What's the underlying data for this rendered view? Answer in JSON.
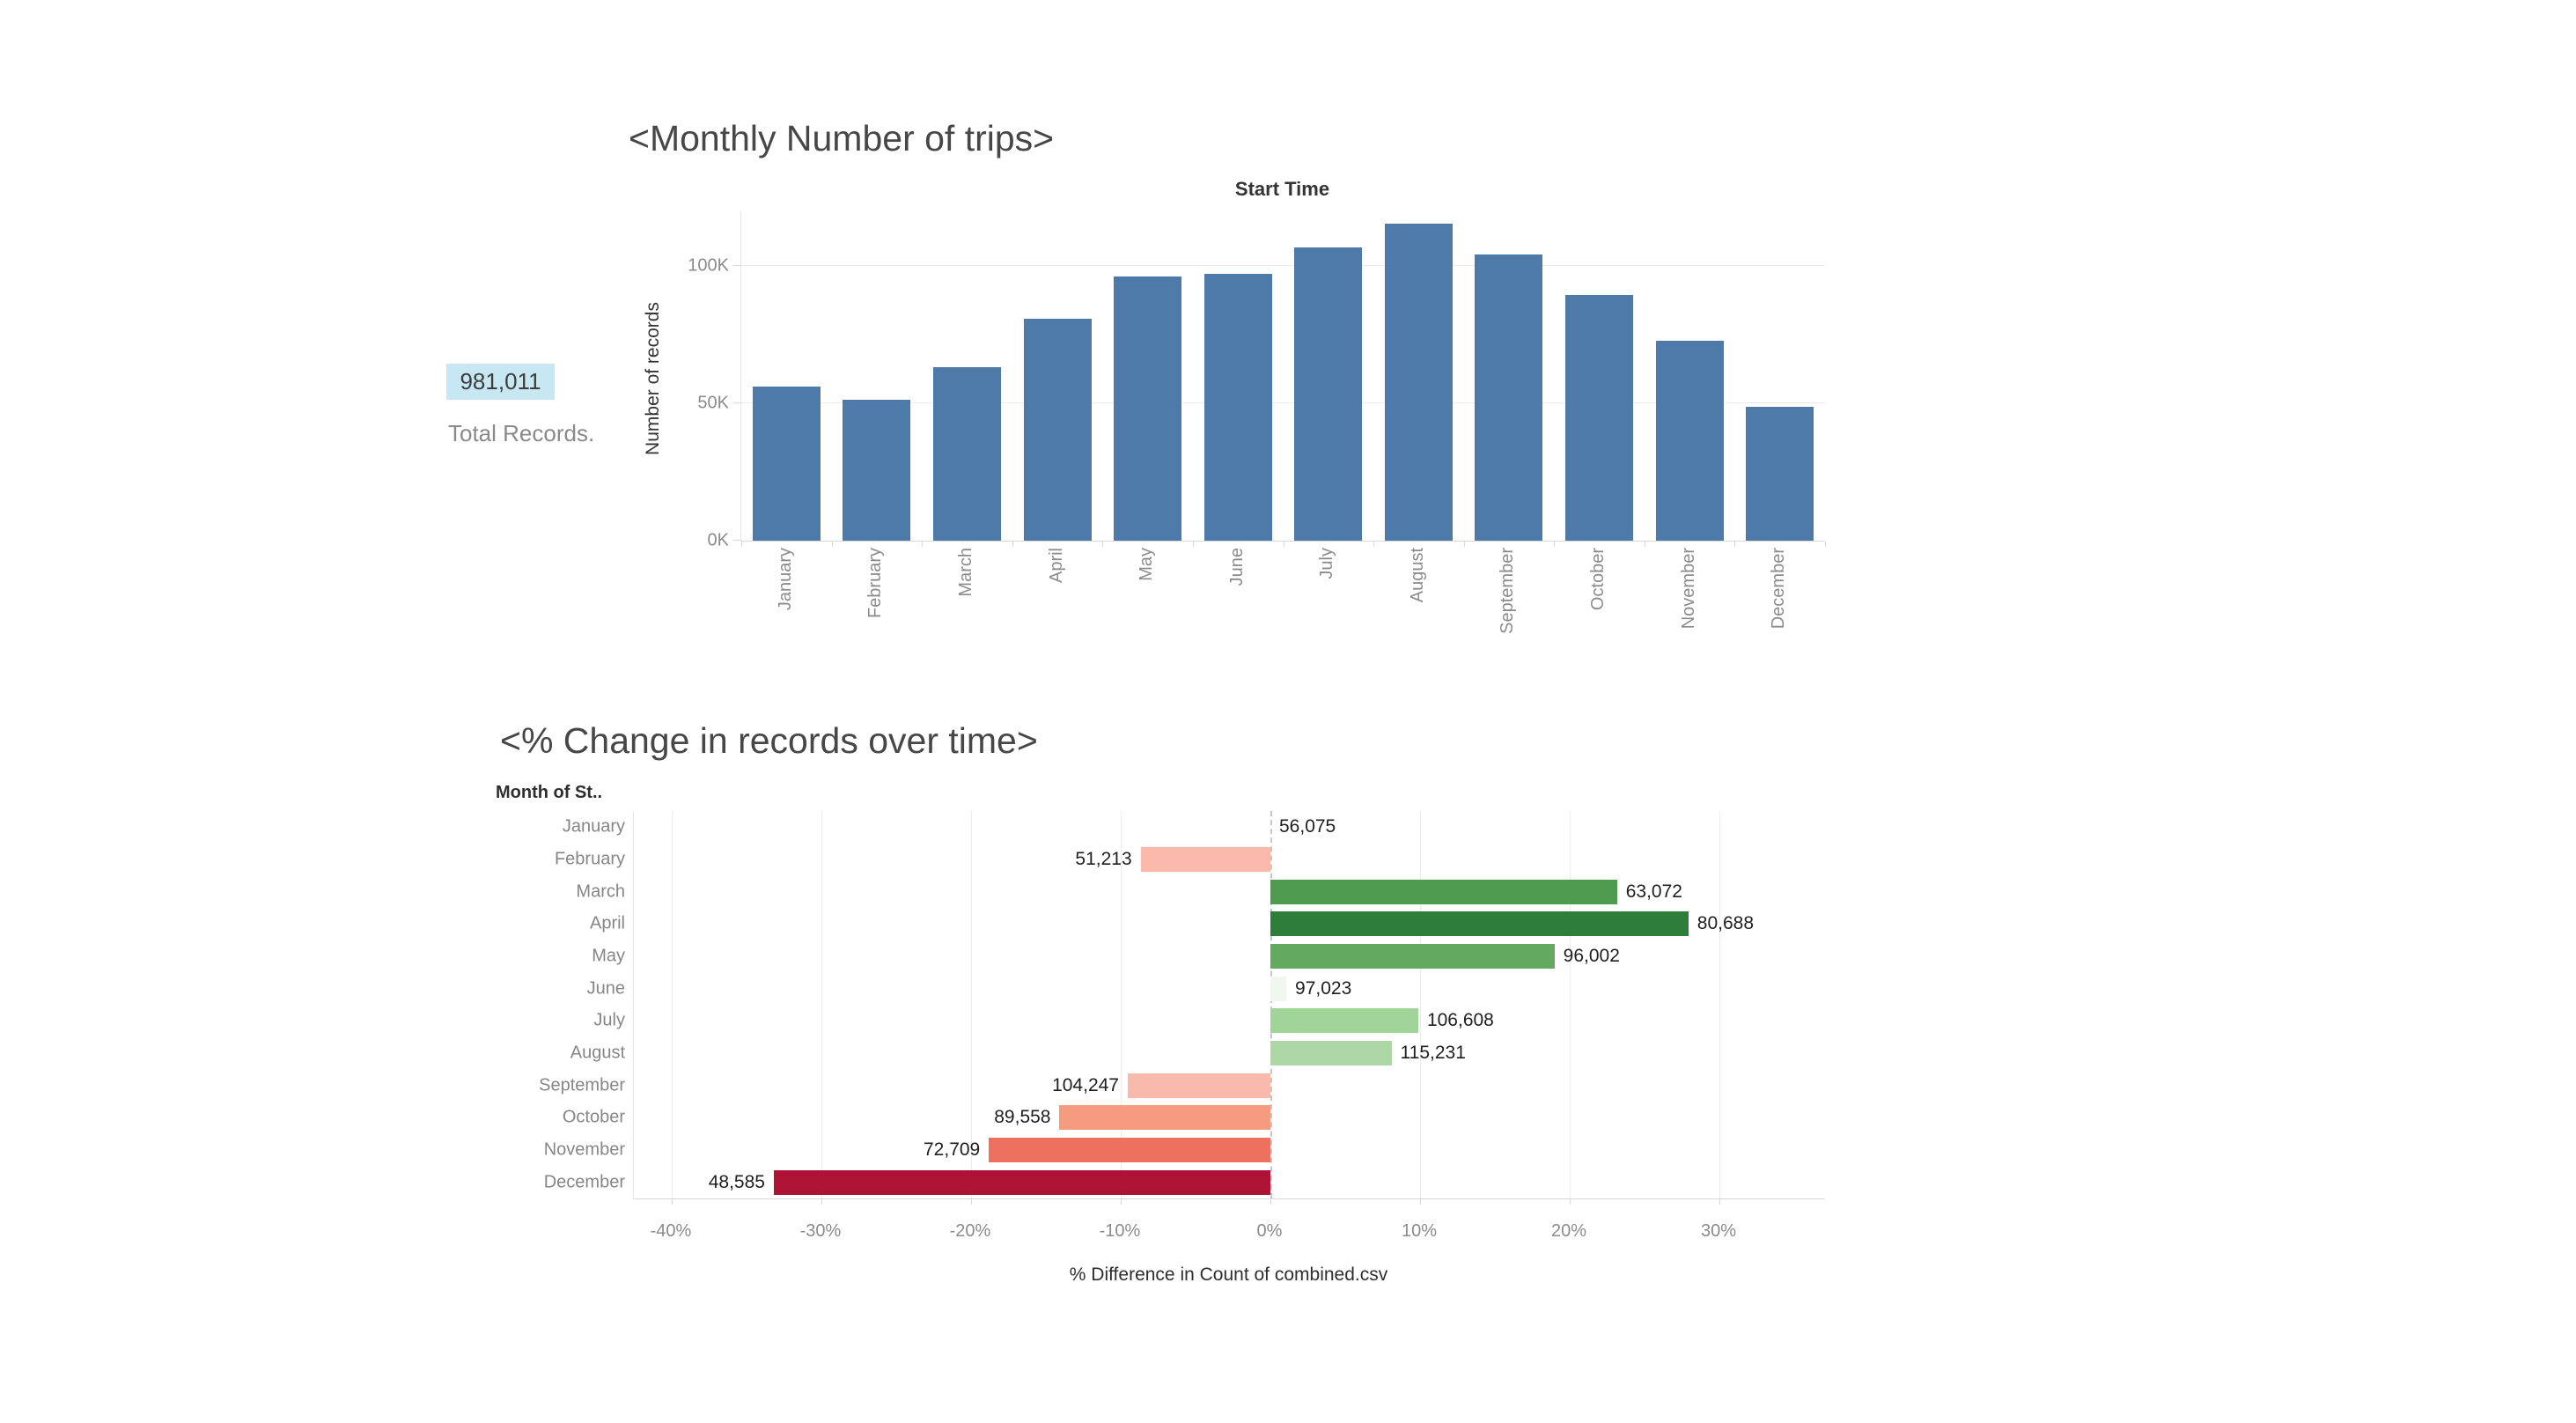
{
  "summary": {
    "value": "981,011",
    "label": "Total Records.",
    "highlight_color": "#c7e8f3"
  },
  "trips_chart": {
    "title": "<Monthly Number of trips>",
    "top_axis_label": "Start Time",
    "y_axis_label": "Number of records",
    "bar_color": "#4d7aa8",
    "y_ticks": [
      {
        "label": "0K",
        "value": 0
      },
      {
        "label": "50K",
        "value": 50000
      },
      {
        "label": "100K",
        "value": 100000
      }
    ],
    "months": [
      "January",
      "February",
      "March",
      "April",
      "May",
      "June",
      "July",
      "August",
      "September",
      "October",
      "November",
      "December"
    ],
    "values": [
      56075,
      51213,
      63072,
      80688,
      96002,
      97023,
      106608,
      115231,
      104247,
      89558,
      72709,
      48585
    ]
  },
  "change_chart": {
    "title": "<% Change in records over time>",
    "row_header": "Month of St..",
    "x_axis_label": "% Difference in Count of combined.csv",
    "x_ticks": [
      {
        "label": "-40%",
        "pct": -40
      },
      {
        "label": "-30%",
        "pct": -30
      },
      {
        "label": "-20%",
        "pct": -20
      },
      {
        "label": "-10%",
        "pct": -10
      },
      {
        "label": "0%",
        "pct": 0
      },
      {
        "label": "10%",
        "pct": 10
      },
      {
        "label": "20%",
        "pct": 20
      },
      {
        "label": "30%",
        "pct": 30
      }
    ],
    "rows": [
      {
        "month": "January",
        "value_label": "56,075",
        "pct": 0,
        "color": null
      },
      {
        "month": "February",
        "value_label": "51,213",
        "pct": -8.67,
        "color": "#fbb9ac"
      },
      {
        "month": "March",
        "value_label": "63,072",
        "pct": 23.16,
        "color": "#4e9b4f"
      },
      {
        "month": "April",
        "value_label": "80,688",
        "pct": 27.93,
        "color": "#2e7d3b"
      },
      {
        "month": "May",
        "value_label": "96,002",
        "pct": 18.98,
        "color": "#63a95f"
      },
      {
        "month": "June",
        "value_label": "97,023",
        "pct": 1.06,
        "color": "#f0f7ee"
      },
      {
        "month": "July",
        "value_label": "106,608",
        "pct": 9.88,
        "color": "#a0d499"
      },
      {
        "month": "August",
        "value_label": "115,231",
        "pct": 8.09,
        "color": "#add8a5"
      },
      {
        "month": "September",
        "value_label": "104,247",
        "pct": -9.53,
        "color": "#f8baaa"
      },
      {
        "month": "October",
        "value_label": "89,558",
        "pct": -14.09,
        "color": "#f59b80"
      },
      {
        "month": "November",
        "value_label": "72,709",
        "pct": -18.81,
        "color": "#ee7160"
      },
      {
        "month": "December",
        "value_label": "48,585",
        "pct": -33.18,
        "color": "#ae1335"
      }
    ]
  },
  "chart_data": [
    {
      "type": "bar",
      "title": "Start Time",
      "categories": [
        "January",
        "February",
        "March",
        "April",
        "May",
        "June",
        "July",
        "August",
        "September",
        "October",
        "November",
        "December"
      ],
      "values": [
        56075,
        51213,
        63072,
        80688,
        96002,
        97023,
        106608,
        115231,
        104247,
        89558,
        72709,
        48585
      ],
      "xlabel": "",
      "ylabel": "Number of records",
      "ylim": [
        0,
        116000
      ],
      "yticks": [
        "0K",
        "50K",
        "100K"
      ],
      "grid": true,
      "legend": "none",
      "bar_color": "#4d7aa8"
    },
    {
      "type": "bar",
      "orientation": "horizontal",
      "title": "<% Change in records over time>",
      "categories": [
        "January",
        "February",
        "March",
        "April",
        "May",
        "June",
        "July",
        "August",
        "September",
        "October",
        "November",
        "December"
      ],
      "series": [
        {
          "name": "% Difference in Count of combined.csv",
          "values": [
            0,
            -8.67,
            23.16,
            27.93,
            18.98,
            1.06,
            9.88,
            8.09,
            -9.53,
            -14.09,
            -18.81,
            -33.18
          ]
        },
        {
          "name": "record count data labels",
          "values": [
            "56,075",
            "51,213",
            "63,072",
            "80,688",
            "96,002",
            "97,023",
            "106,608",
            "115,231",
            "104,247",
            "89,558",
            "72,709",
            "48,585"
          ]
        }
      ],
      "xlabel": "% Difference in Count of combined.csv",
      "xlim": [
        -42.5,
        37
      ],
      "xticks": [
        "-40%",
        "-30%",
        "-20%",
        "-10%",
        "0%",
        "10%",
        "20%",
        "30%"
      ],
      "grid": true,
      "legend": "none",
      "zero_line": "dashed",
      "bar_colors": [
        null,
        "#fbb9ac",
        "#4e9b4f",
        "#2e7d3b",
        "#63a95f",
        "#f0f7ee",
        "#a0d499",
        "#add8a5",
        "#f8baaa",
        "#f59b80",
        "#ee7160",
        "#ae1335"
      ]
    }
  ]
}
